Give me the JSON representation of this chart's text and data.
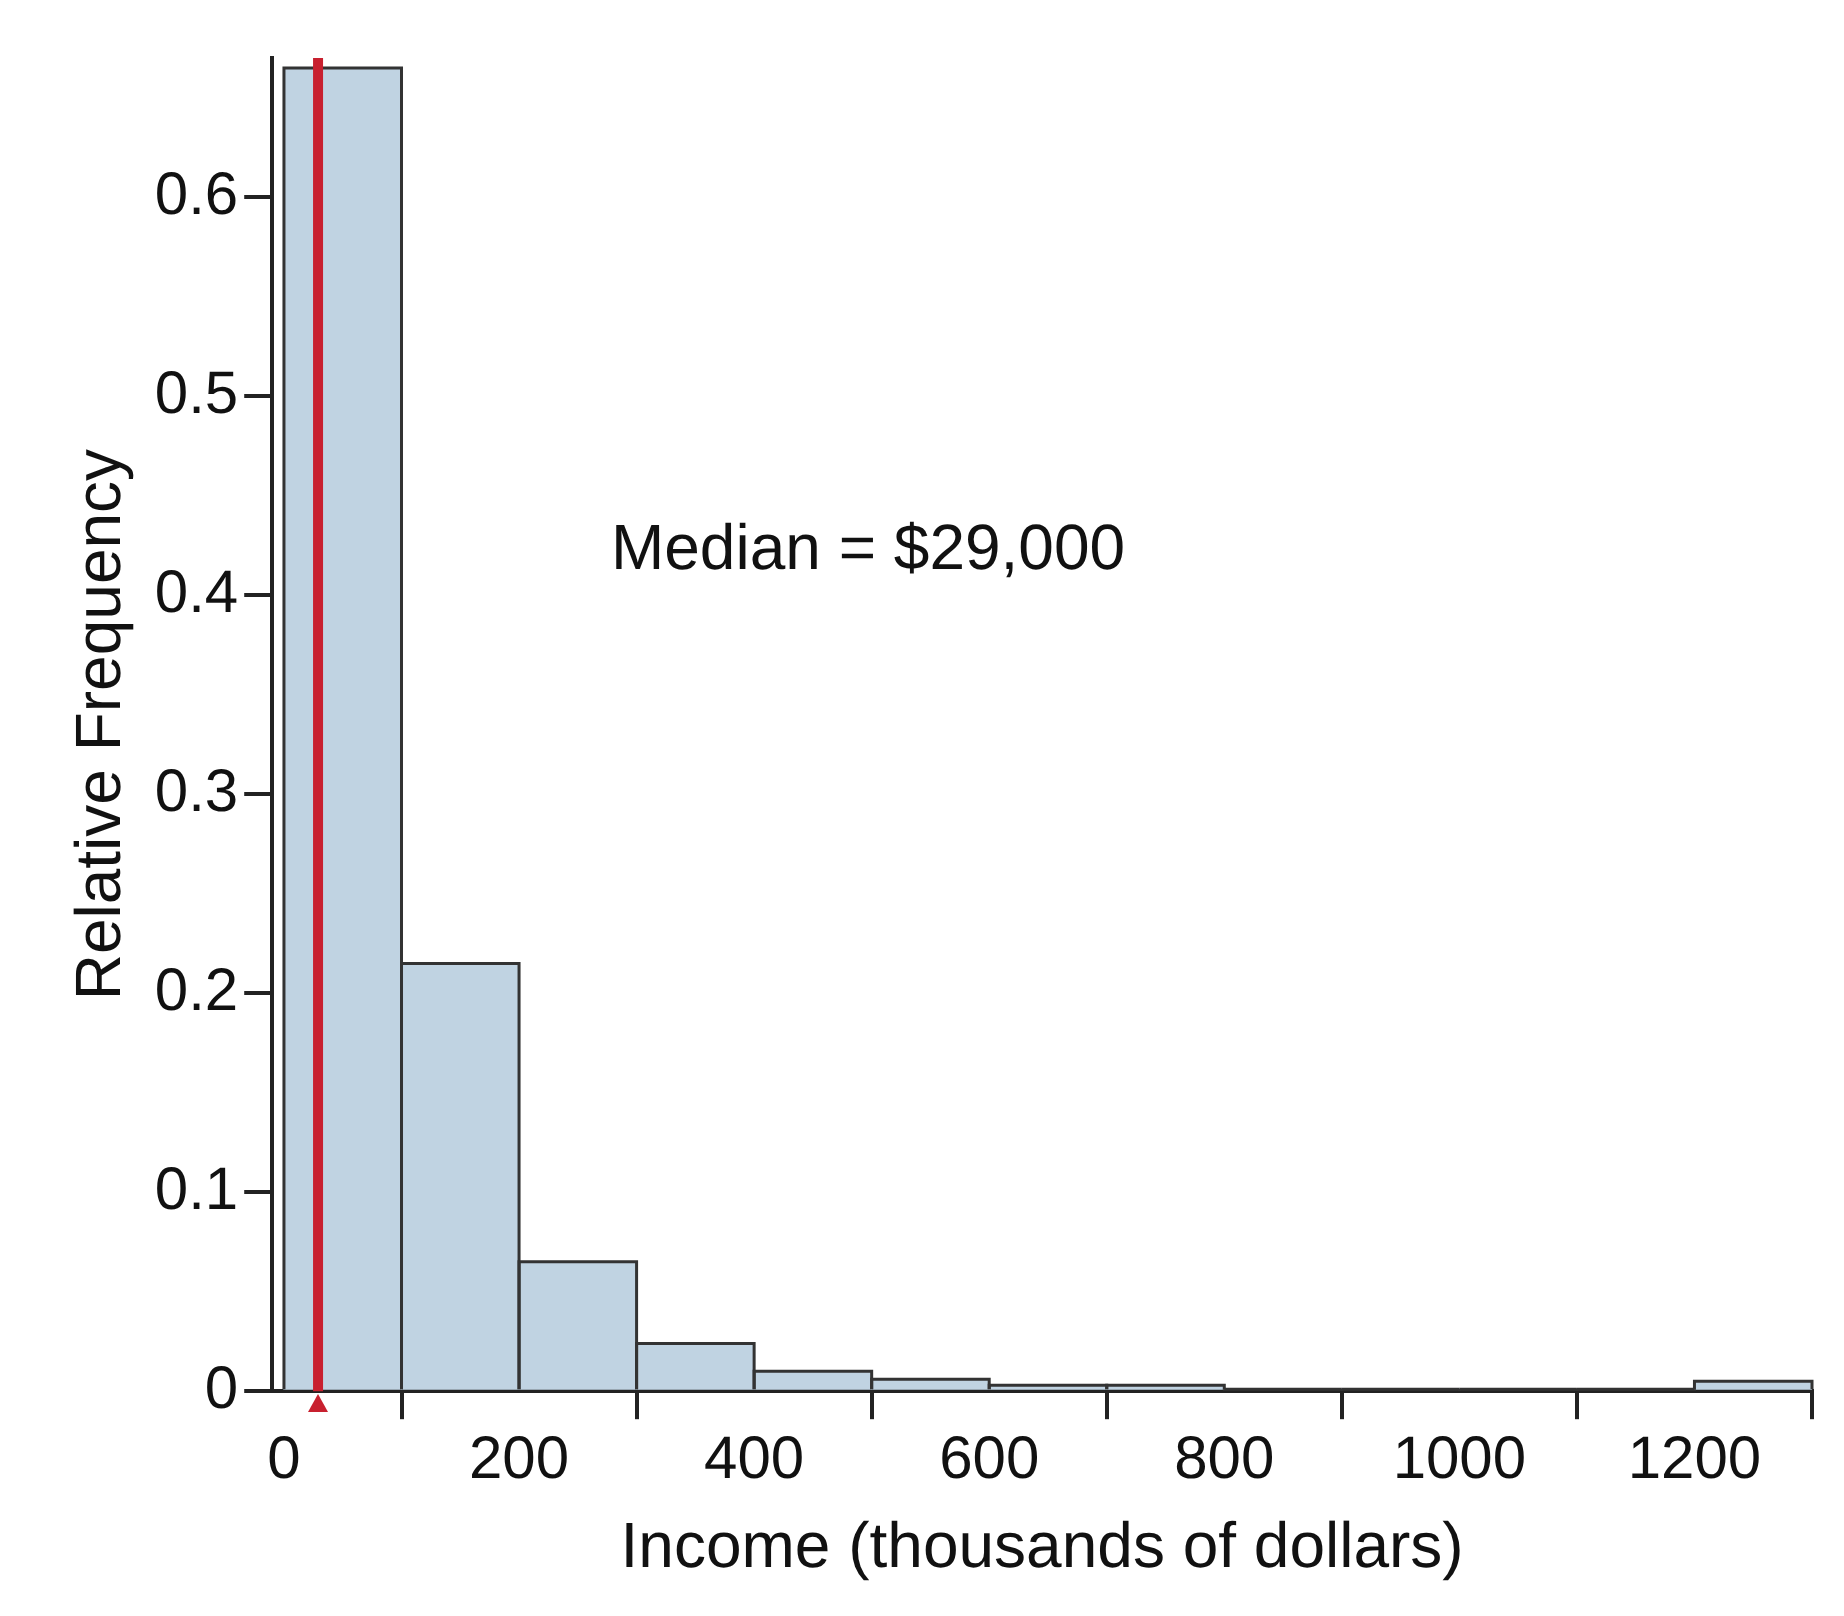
{
  "chart_data": {
    "type": "histogram",
    "xlabel": "Income (thousands of dollars)",
    "ylabel": "Relative Frequency",
    "bins": [
      0,
      100,
      200,
      300,
      400,
      500,
      600,
      700,
      800,
      900,
      1000,
      1100,
      1200,
      1300
    ],
    "values": [
      0.665,
      0.215,
      0.065,
      0.024,
      0.01,
      0.006,
      0.003,
      0.003,
      0.001,
      0.001,
      0.001,
      0.001,
      0.005
    ],
    "color": "#c0d3e2",
    "xlim": [
      -10,
      1300
    ],
    "xticks": [
      0,
      200,
      400,
      600,
      800,
      1000,
      1200
    ],
    "ylim": [
      0,
      0.67
    ],
    "yticks": [
      0,
      0.1,
      0.2,
      0.3,
      0.4,
      0.5,
      0.6
    ],
    "ref_lines": [
      {
        "axis": "x",
        "value": 29,
        "color": "#c8202f"
      }
    ],
    "annotations": [
      "Median = $29,000"
    ],
    "grid": false,
    "legend": false
  }
}
